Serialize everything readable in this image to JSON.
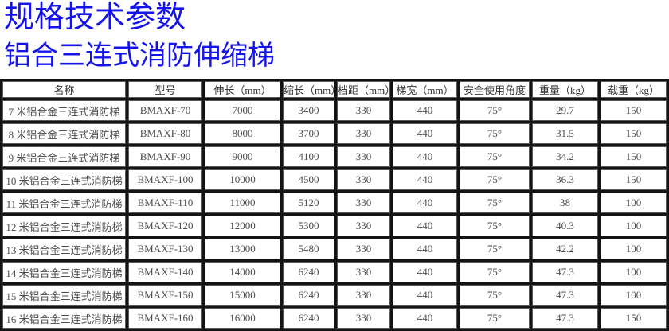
{
  "page": {
    "title": "规格技术参数",
    "subtitle": "铝合三连式消防伸缩梯",
    "title_color": "#1413ec"
  },
  "table": {
    "headers": [
      "名称",
      "型号",
      "伸长（mm）",
      "缩长（mm）",
      "档距（mm）",
      "梯宽（mm）",
      "安全使用角度",
      "重量（kg）",
      "载重（kg）"
    ],
    "column_keys": [
      "name",
      "model",
      "extended-length",
      "retracted-length",
      "rung-spacing",
      "ladder-width",
      "safe-angle",
      "weight",
      "load-capacity"
    ],
    "rows": [
      [
        "7 米铝合金三连式消防梯",
        "BMAXF-70",
        "7000",
        "3400",
        "330",
        "440",
        "75°",
        "29.7",
        "150"
      ],
      [
        "8 米铝合金三连式消防梯",
        "BMAXF-80",
        "8000",
        "3700",
        "330",
        "440",
        "75°",
        "31.5",
        "150"
      ],
      [
        "9 米铝合金三连式消防梯",
        "BMAXF-90",
        "9000",
        "4100",
        "330",
        "440",
        "75°",
        "34.2",
        "150"
      ],
      [
        "10 米铝合金三连式消防梯",
        "BMAXF-100",
        "10000",
        "4500",
        "330",
        "440",
        "75°",
        "36.3",
        "150"
      ],
      [
        "11 米铝合金三连式消防梯",
        "BMAXF-110",
        "11000",
        "5120",
        "330",
        "440",
        "75°",
        "38",
        "100"
      ],
      [
        "12 米铝合金三连式消防梯",
        "BMAXF-120",
        "12000",
        "5300",
        "330",
        "440",
        "75°",
        "40.3",
        "100"
      ],
      [
        "13 米铝合金三连式消防梯",
        "BMAXF-130",
        "13000",
        "5480",
        "330",
        "440",
        "75°",
        "42.2",
        "100"
      ],
      [
        "14 米铝合金三连式消防梯",
        "BMAXF-140",
        "14000",
        "6240",
        "330",
        "440",
        "75°",
        "47.3",
        "100"
      ],
      [
        "15 米铝合金三连式消防梯",
        "BMAXF-150",
        "15000",
        "6240",
        "330",
        "440",
        "75°",
        "47.3",
        "100"
      ],
      [
        "16 米铝合金三连式消防梯",
        "BMAXF-160",
        "16000",
        "6240",
        "330",
        "440",
        "75°",
        "47.3",
        "150"
      ]
    ]
  }
}
